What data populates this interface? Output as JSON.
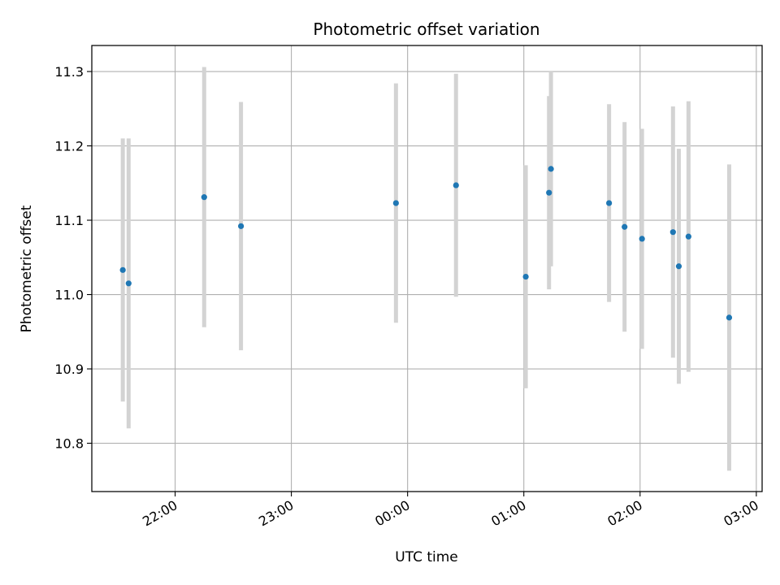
{
  "chart_data": {
    "type": "scatter",
    "title": "Photometric offset variation",
    "xlabel": "UTC time",
    "ylabel": "Photometric offset",
    "x_ticks": [
      "22:00",
      "23:00",
      "00:00",
      "01:00",
      "02:00",
      "03:00"
    ],
    "y_ticks": [
      "10.8",
      "10.9",
      "11.0",
      "11.1",
      "11.2",
      "11.3"
    ],
    "x_tick_values": [
      "2000-01-01T22:00",
      "2000-01-01T23:00",
      "2000-01-02T00:00",
      "2000-01-02T01:00",
      "2000-01-02T02:00",
      "2000-01-02T03:00"
    ],
    "y_tick_values": [
      10.8,
      10.9,
      11.0,
      11.1,
      11.2,
      11.3
    ],
    "xlim": [
      "2000-01-01T21:17",
      "2000-01-02T03:03"
    ],
    "ylim": [
      10.735,
      11.335
    ],
    "grid": true,
    "point_color": "#1f77b4",
    "errorbar_color": "#d3d3d3",
    "points": [
      {
        "x": "2000-01-01T21:33",
        "y": 11.033,
        "err": 0.177
      },
      {
        "x": "2000-01-01T21:36",
        "y": 11.015,
        "err": 0.195
      },
      {
        "x": "2000-01-01T22:15",
        "y": 11.131,
        "err": 0.175
      },
      {
        "x": "2000-01-01T22:34",
        "y": 11.092,
        "err": 0.167
      },
      {
        "x": "2000-01-01T23:54",
        "y": 11.123,
        "err": 0.161
      },
      {
        "x": "2000-01-02T00:25",
        "y": 11.147,
        "err": 0.15
      },
      {
        "x": "2000-01-02T01:01",
        "y": 11.024,
        "err": 0.15
      },
      {
        "x": "2000-01-02T01:13",
        "y": 11.137,
        "err": 0.13
      },
      {
        "x": "2000-01-02T01:14",
        "y": 11.169,
        "err": 0.131
      },
      {
        "x": "2000-01-02T01:44",
        "y": 11.123,
        "err": 0.133
      },
      {
        "x": "2000-01-02T01:52",
        "y": 11.091,
        "err": 0.141
      },
      {
        "x": "2000-01-02T02:01",
        "y": 11.075,
        "err": 0.148
      },
      {
        "x": "2000-01-02T02:17",
        "y": 11.084,
        "err": 0.169
      },
      {
        "x": "2000-01-02T02:20",
        "y": 11.038,
        "err": 0.158
      },
      {
        "x": "2000-01-02T02:25",
        "y": 11.078,
        "err": 0.182
      },
      {
        "x": "2000-01-02T02:46",
        "y": 10.969,
        "err": 0.206
      }
    ]
  }
}
